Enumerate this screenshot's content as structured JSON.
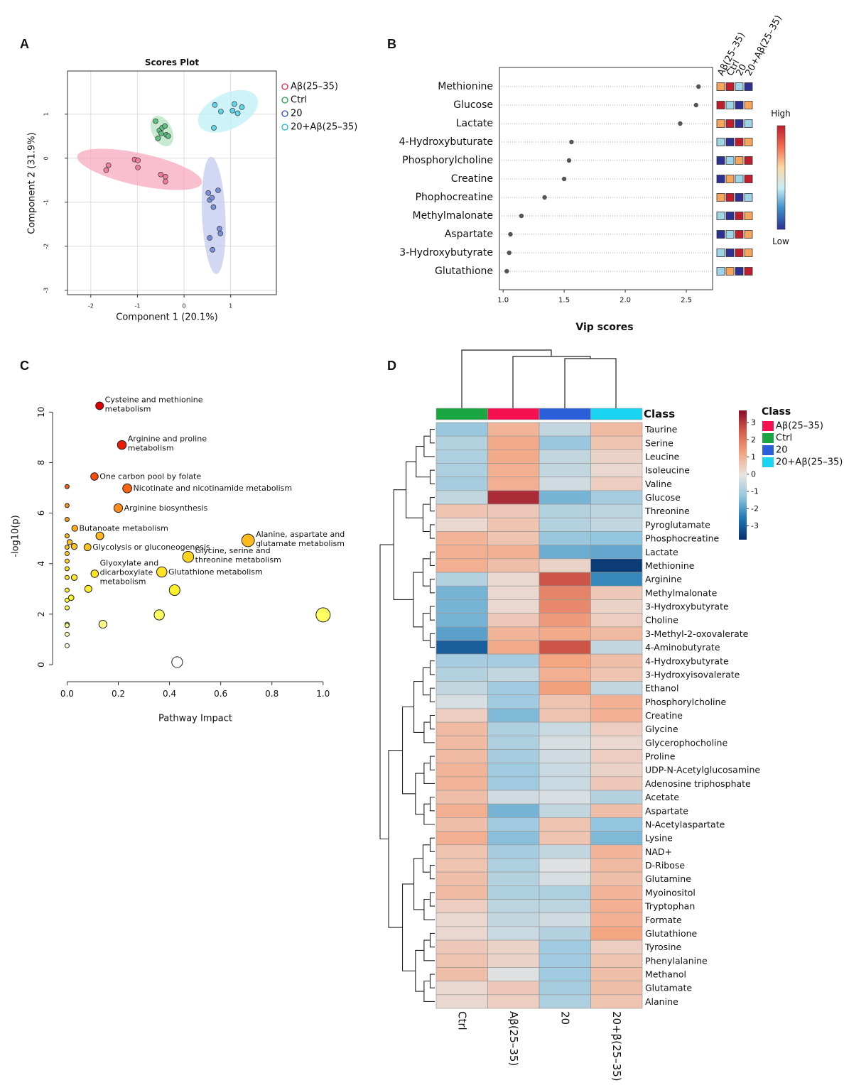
{
  "chart_data": [
    {
      "panel": "A",
      "type": "scatter",
      "title": "Scores Plot",
      "x_label": "Component 1 (20.1%)",
      "y_label": "Component 2 (31.9%)",
      "xlim": [
        -2.5,
        1.98
      ],
      "ylim": [
        -3.1,
        1.98
      ],
      "xticks": [
        -2,
        -1,
        0,
        1
      ],
      "yticks": [
        -3,
        -2,
        -1,
        0,
        1
      ],
      "grid": true,
      "series": [
        {
          "name": "Aβ(25–35)",
          "color": "#e3263f",
          "fill": "#f07d9b",
          "ellipse_color": "#f7a9bd",
          "x": [
            -1.67,
            -1.62,
            -1.06,
            -0.99,
            -0.99,
            -0.5,
            -0.4,
            -0.4
          ],
          "y": [
            -0.27,
            -0.16,
            -0.03,
            -0.05,
            -0.21,
            -0.37,
            -0.42,
            -0.53
          ]
        },
        {
          "name": "Ctrl",
          "color": "#1f9e4a",
          "fill": "#5cc083",
          "ellipse_color": "#b5e3c1",
          "x": [
            -0.61,
            -0.53,
            -0.47,
            -0.56,
            -0.49,
            -0.41,
            -0.38,
            -0.34
          ],
          "y": [
            0.84,
            0.63,
            0.69,
            0.45,
            0.56,
            0.73,
            0.53,
            0.5
          ]
        },
        {
          "name": "20",
          "color": "#2f4fc0",
          "fill": "#7a8fd8",
          "ellipse_color": "#c3cbef",
          "x": [
            0.52,
            0.55,
            0.73,
            0.6,
            0.63,
            0.76,
            0.78,
            0.55,
            0.61
          ],
          "y": [
            -0.79,
            -0.95,
            -0.73,
            -0.9,
            -1.11,
            -1.6,
            -1.71,
            -1.81,
            -2.08
          ]
        },
        {
          "name": "20+Aβ(25–35)",
          "color": "#14b9d3",
          "fill": "#5fd6e6",
          "ellipse_color": "#bdeff7",
          "x": [
            0.66,
            0.79,
            1.04,
            1.08,
            1.15,
            1.24,
            0.64
          ],
          "y": [
            1.21,
            1.06,
            1.08,
            1.23,
            1.02,
            1.16,
            0.69
          ]
        }
      ]
    },
    {
      "panel": "B",
      "type": "dot",
      "x_label": "Vip scores",
      "categories": [
        "Methionine",
        "Glucose",
        "Lactate",
        "4-Hydroxybuturate",
        "Phosphorylcholine",
        "Creatine",
        "Phophocreatine",
        "Methylmalonate",
        "Aspartate",
        "3-Hydroxybutyrate",
        "Glutathione"
      ],
      "values": [
        2.6,
        2.58,
        2.45,
        1.56,
        1.54,
        1.5,
        1.34,
        1.15,
        1.06,
        1.05,
        1.03
      ],
      "xlim": [
        0.97,
        2.715
      ],
      "xticks": [
        {
          "value": 1,
          "label": "1.0"
        },
        {
          "value": 1.5,
          "label": "1.5"
        },
        {
          "value": 2,
          "label": "2.0"
        },
        {
          "value": 2.5,
          "label": "2.5"
        }
      ],
      "color": "#555555",
      "heat_columns": [
        "Aβ(25–35)",
        "Ctrl",
        "20",
        "20+Aβ(25–35)"
      ],
      "heat_ranks": [
        [
          3,
          4,
          2,
          1
        ],
        [
          4,
          2,
          1,
          3
        ],
        [
          3,
          4,
          1,
          2
        ],
        [
          2,
          1,
          4,
          3
        ],
        [
          1,
          2,
          3,
          4
        ],
        [
          1,
          3,
          2,
          4
        ],
        [
          3,
          4,
          1,
          2
        ],
        [
          2,
          1,
          4,
          3
        ],
        [
          1,
          2,
          4,
          3
        ],
        [
          2,
          1,
          4,
          3
        ],
        [
          2,
          3,
          1,
          4
        ]
      ],
      "heat_colors": [
        "#2e3192",
        "#9fd4e7",
        "#f8a55c",
        "#be1e2d"
      ],
      "colorbar_colors": [
        "#be1e2d",
        "#f26b4f",
        "#fbd8a6",
        "#c9ecf4",
        "#3c8ec8",
        "#2e3192"
      ],
      "colorbar_labels": [
        "High",
        "Low"
      ]
    },
    {
      "panel": "C",
      "type": "bubble",
      "x_label": "Pathway Impact",
      "y_label": "-log10(p)",
      "xlim": [
        -0.04,
        1.07
      ],
      "ylim": [
        -0.45,
        10.6
      ],
      "xticks": [
        {
          "value": 0,
          "label": "0.0"
        },
        {
          "value": 0.2,
          "label": "0.2"
        },
        {
          "value": 0.4,
          "label": "0.4"
        },
        {
          "value": 0.6,
          "label": "0.6"
        },
        {
          "value": 0.8,
          "label": "0.8"
        },
        {
          "value": 1,
          "label": "1.0"
        }
      ],
      "yticks": [
        0,
        2,
        4,
        6,
        8,
        10
      ],
      "x": [
        0.127,
        0.214,
        0.107,
        0.235,
        0.2,
        0.03,
        0.707,
        0.08,
        0.473,
        0.108,
        0.37,
        0,
        0,
        0,
        0,
        0.01,
        0,
        0.028,
        0.128,
        0.028,
        0.083,
        0.42,
        0,
        0,
        0,
        0.016,
        0,
        0,
        0,
        0,
        0,
        0,
        0.36,
        0.14,
        1.0,
        0.43,
        0,
        0
      ],
      "y": [
        10.25,
        8.7,
        7.45,
        6.98,
        6.2,
        5.4,
        4.92,
        4.65,
        4.27,
        3.6,
        3.67,
        7.05,
        6.3,
        5.75,
        5.1,
        4.85,
        4.65,
        4.68,
        5.1,
        3.45,
        3.0,
        2.95,
        3.8,
        3.45,
        2.95,
        2.65,
        2.55,
        2.25,
        1.6,
        1.55,
        1.2,
        0.75,
        1.97,
        1.6,
        1.97,
        0.1,
        4.4,
        4.1
      ],
      "labels": [
        [
          "Cysteine and methionine",
          "metabolism"
        ],
        [
          "Arginine and proline",
          "metabolism"
        ],
        [
          "One carbon pool by folate"
        ],
        [
          "Nicotinate and nicotinamide metabolism"
        ],
        [
          "Arginine biosynthesis"
        ],
        [
          "Butanoate metabolism"
        ],
        [
          "Alanine, aspartate and",
          "glutamate metabolism"
        ],
        [
          "Glycolysis or gluconeogenesis"
        ],
        [
          "Glycine, serine and",
          "threonine metabolism"
        ],
        [
          "Glyoxylate and",
          "dicarboxylate",
          "metabolism"
        ],
        [
          "Glutathione metabolism"
        ],
        null,
        null,
        null,
        null,
        null,
        null,
        null,
        null,
        null,
        null,
        null,
        null,
        null,
        null,
        null,
        null,
        null,
        null,
        null,
        null,
        null,
        null,
        null,
        null,
        null,
        null,
        null
      ]
    },
    {
      "panel": "D",
      "type": "heatmap",
      "class_label": "Class",
      "legend_title": "Class",
      "columns": [
        "Ctrl",
        "Aβ(25–35)",
        "20",
        "20+β(25–35)"
      ],
      "class_colors": [
        "#1aa640",
        "#f5104f",
        "#2b5fd9",
        "#19d3f0"
      ],
      "legend": [
        {
          "name": "Aβ(25–35)",
          "color": "#f5104f"
        },
        {
          "name": "Ctrl",
          "color": "#1aa640"
        },
        {
          "name": "20",
          "color": "#2b5fd9"
        },
        {
          "name": "20+Aβ(25–35)",
          "color": "#19d3f0"
        }
      ],
      "zlim": [
        -3.8,
        3.7
      ],
      "zticks": [
        3,
        2,
        1,
        0,
        -1,
        -2,
        -3
      ],
      "colorscale": [
        "#08306b",
        "#1f78b4",
        "#92c5de",
        "#e8e4e2",
        "#f4a582",
        "#d6604d",
        "#8b0a26"
      ],
      "rows": [
        "Taurine",
        "Serine",
        "Leucine",
        "Isoleucine",
        "Valine",
        "Glucose",
        "Threonine",
        "Pyroglutamate",
        "Phosphocreatine",
        "Lactate",
        "Methionine",
        "Arginine",
        "Methylmalonate",
        "3-Hydroxybutyrate",
        "Choline",
        "3-Methyl-2-oxovalerate",
        "4-Aminobutyrate",
        "4-Hydroxybutyrate",
        "3-Hydroxyisovalerate",
        "Ethanol",
        "Phosphorylcholine",
        "Creatine",
        "Glycine",
        "Glycerophocholine",
        "Proline",
        "UDP-N-Acetylglucosamine",
        "Adenosine triphosphate",
        "Acetate",
        "Aspartate",
        "N-Acetylaspartate",
        "Lysine",
        "NAD+",
        "D-Ribose",
        "Glutamine",
        "Myoinositol",
        "Tryptophan",
        "Formate",
        "Glutathione",
        "Tyrosine",
        "Phenylalanine",
        "Methanol",
        "Glutamate",
        "Alanine"
      ],
      "values": [
        [
          -1.2,
          0.9,
          -0.6,
          0.8
        ],
        [
          -0.8,
          1.1,
          -1.2,
          0.6
        ],
        [
          -0.9,
          1.1,
          -0.6,
          0.3
        ],
        [
          -0.9,
          1.0,
          -0.6,
          0.2
        ],
        [
          -1.0,
          1.0,
          -0.4,
          0.4
        ],
        [
          -0.6,
          3.2,
          -1.6,
          -1.0
        ],
        [
          0.6,
          0.5,
          -0.8,
          -0.7
        ],
        [
          0.2,
          0.6,
          -0.8,
          -0.6
        ],
        [
          0.9,
          0.6,
          -1.2,
          -1.3
        ],
        [
          1.0,
          1.0,
          -1.7,
          -1.8
        ],
        [
          1.0,
          0.7,
          0.3,
          -3.6
        ],
        [
          -0.8,
          0.2,
          2.6,
          -2.3
        ],
        [
          -1.6,
          0.2,
          1.8,
          0.5
        ],
        [
          -1.6,
          0.2,
          1.7,
          0.3
        ],
        [
          -1.6,
          0.5,
          1.4,
          0.4
        ],
        [
          -1.9,
          0.9,
          1.1,
          0.8
        ],
        [
          -3.0,
          1.1,
          2.6,
          -0.6
        ],
        [
          -1.0,
          -1.0,
          1.2,
          0.7
        ],
        [
          -0.8,
          -0.6,
          1.0,
          0.6
        ],
        [
          -0.6,
          -1.1,
          1.3,
          -0.6
        ],
        [
          -0.3,
          -1.1,
          0.6,
          1.0
        ],
        [
          0.4,
          -1.5,
          0.6,
          1.0
        ],
        [
          0.8,
          -0.9,
          -0.5,
          0.4
        ],
        [
          0.8,
          -0.9,
          -0.3,
          0.2
        ],
        [
          0.8,
          -1.0,
          -0.4,
          0.4
        ],
        [
          0.9,
          -1.1,
          -0.5,
          0.3
        ],
        [
          0.9,
          -1.1,
          -0.5,
          0.5
        ],
        [
          0.7,
          -0.4,
          -0.3,
          -0.8
        ],
        [
          1.0,
          -1.6,
          -0.6,
          0.7
        ],
        [
          0.7,
          -1.1,
          0.6,
          -1.3
        ],
        [
          1.0,
          -1.4,
          0.6,
          -1.5
        ],
        [
          0.6,
          -1.0,
          -0.6,
          0.9
        ],
        [
          0.6,
          -0.9,
          -0.2,
          0.8
        ],
        [
          0.7,
          -0.8,
          -0.3,
          0.7
        ],
        [
          0.8,
          -0.9,
          -0.9,
          0.9
        ],
        [
          0.4,
          -0.7,
          -0.7,
          1.0
        ],
        [
          0.2,
          -0.6,
          -0.4,
          1.0
        ],
        [
          0.2,
          -0.5,
          -0.8,
          1.2
        ],
        [
          0.5,
          0.3,
          -1.1,
          0.4
        ],
        [
          0.6,
          0.3,
          -1.1,
          0.6
        ],
        [
          0.7,
          -0.2,
          -1.1,
          0.7
        ],
        [
          0.2,
          0.5,
          -1.0,
          0.7
        ],
        [
          0.2,
          0.4,
          -0.9,
          0.6
        ]
      ]
    }
  ]
}
